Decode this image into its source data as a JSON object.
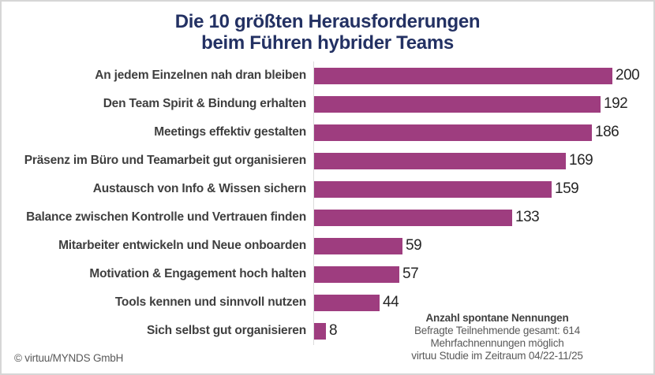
{
  "title": {
    "line1": "Die 10 größten Herausforderungen",
    "line2": "beim Führen hybrider Teams"
  },
  "chart_data": {
    "type": "bar",
    "orientation": "horizontal",
    "title": "Die 10 größten Herausforderungen beim Führen hybrider Teams",
    "categories": [
      "An jedem Einzelnen nah dran bleiben",
      "Den Team Spirit & Bindung erhalten",
      "Meetings effektiv gestalten",
      "Präsenz im Büro und Teamarbeit gut organisieren",
      "Austausch von Info & Wissen sichern",
      "Balance zwischen Kontrolle und Vertrauen finden",
      "Mitarbeiter entwickeln und Neue onboarden",
      "Motivation & Engagement hoch halten",
      "Tools kennen und sinnvoll nutzen",
      "Sich selbst gut organisieren"
    ],
    "values": [
      200,
      192,
      186,
      169,
      159,
      133,
      59,
      57,
      44,
      8
    ],
    "xlabel": "",
    "ylabel": "",
    "xlim": [
      0,
      210
    ],
    "grid": false,
    "legend": false,
    "value_labels": "end-of-bar",
    "bar_color": "#9E3D7F"
  },
  "footnote": {
    "heading": "Anzahl spontane Nennungen",
    "lines": [
      "Befragte Teilnehmende gesamt: 614",
      "Mehrfachnennungen möglich",
      "virtuu Studie im Zeitraum 04/22-11/25"
    ]
  },
  "copyright": "© virtuu/MYNDS GmbH",
  "colors": {
    "title": "#233163",
    "bar": "#9E3D7F",
    "category_label": "#3F3F3F",
    "value_label": "#262626",
    "footnote": "#595959"
  }
}
